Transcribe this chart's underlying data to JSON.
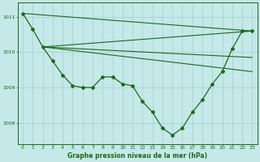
{
  "title": "Graphe pression niveau de la mer (hPa)",
  "bg_color": "#c5e8e8",
  "grid_color": "#a8d4d4",
  "line_color": "#1a6b1a",
  "xlim": [
    -0.5,
    23.5
  ],
  "ylim": [
    1007.4,
    1011.4
  ],
  "yticks": [
    1008,
    1009,
    1010,
    1011
  ],
  "xticks": [
    0,
    1,
    2,
    3,
    4,
    5,
    6,
    7,
    8,
    9,
    10,
    11,
    12,
    13,
    14,
    15,
    16,
    17,
    18,
    19,
    20,
    21,
    22,
    23
  ],
  "main_curve": {
    "x": [
      0,
      1,
      2,
      3,
      4,
      5,
      6,
      7,
      8,
      9,
      10,
      11,
      12,
      13,
      14,
      15,
      16,
      17,
      18,
      19,
      20,
      21,
      22,
      23
    ],
    "y": [
      1011.1,
      1010.65,
      1010.15,
      1009.75,
      1009.35,
      1009.05,
      1009.0,
      1009.0,
      1009.3,
      1009.3,
      1009.1,
      1009.05,
      1008.6,
      1008.3,
      1007.85,
      1007.65,
      1007.85,
      1008.3,
      1008.65,
      1009.1,
      1009.45,
      1010.1,
      1010.6,
      1010.6
    ]
  },
  "trend_lines": [
    {
      "x": [
        0,
        23
      ],
      "y": [
        1011.1,
        1010.6
      ]
    },
    {
      "x": [
        2,
        23
      ],
      "y": [
        1010.15,
        1010.6
      ]
    },
    {
      "x": [
        2,
        23
      ],
      "y": [
        1010.15,
        1009.45
      ]
    },
    {
      "x": [
        2,
        23
      ],
      "y": [
        1010.15,
        1009.85
      ]
    }
  ]
}
